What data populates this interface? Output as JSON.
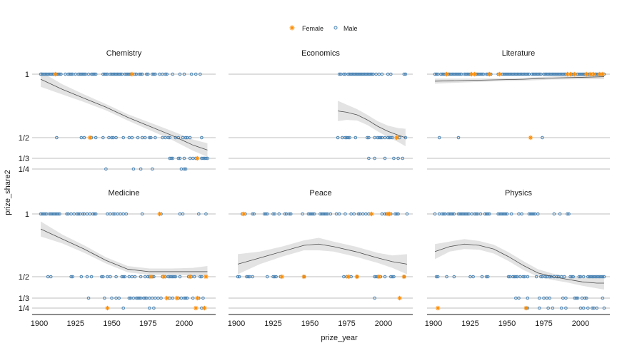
{
  "chart_data": {
    "type": "scatter",
    "title": "",
    "xlabel": "prize_year",
    "ylabel": "prize_share2",
    "xlim": [
      1897,
      2020
    ],
    "x_ticks": [
      1900,
      1925,
      1950,
      1975,
      2000
    ],
    "y_levels": [
      1,
      0.5,
      0.3333,
      0.25
    ],
    "y_tick_labels": [
      "1",
      "1/2",
      "1/3",
      "1/4"
    ],
    "legend": {
      "placement": "top",
      "entries": [
        {
          "name": "Female",
          "marker": "asterisk",
          "color": "#FF8C00"
        },
        {
          "name": "Male",
          "marker": "open-circle",
          "color": "#4682B4"
        }
      ]
    },
    "grid": "horizontal",
    "smooth": {
      "color": "#4d4d4d",
      "ribbon_color": "#e3e3e3"
    },
    "panels": [
      {
        "name": "Chemistry",
        "male": {
          "1": [
            1901,
            1902,
            1903,
            1904,
            1905,
            1906,
            1907,
            1908,
            1909,
            1910,
            1912,
            1913,
            1914,
            1915,
            1918,
            1920,
            1921,
            1922,
            1923,
            1925,
            1927,
            1928,
            1929,
            1930,
            1931,
            1932,
            1934,
            1936,
            1937,
            1938,
            1939,
            1944,
            1945,
            1946,
            1947,
            1949,
            1950,
            1951,
            1952,
            1953,
            1954,
            1955,
            1956,
            1957,
            1959,
            1960,
            1961,
            1962,
            1963,
            1966,
            1967,
            1969,
            1970,
            1971,
            1974,
            1975,
            1978,
            1979,
            1980,
            1983,
            1985,
            1987,
            1988,
            1992,
            1997,
            2000,
            2005,
            2008,
            2011
          ],
          "1/2": [
            1912,
            1929,
            1931,
            1936,
            1939,
            1944,
            1948,
            1950,
            1951,
            1953,
            1958,
            1962,
            1964,
            1968,
            1971,
            1973,
            1976,
            1977,
            1980,
            1985,
            1987,
            1989,
            1990,
            1994,
            1996,
            1999,
            2001,
            2002,
            2004,
            2012
          ],
          "1/3": [
            1990,
            1991,
            1992,
            1996,
            1997,
            2000,
            2004,
            2006,
            2008,
            2012,
            2013,
            2014,
            2015,
            2016
          ],
          "1/4": [
            1946,
            1965,
            1970,
            1978,
            1998,
            2000,
            2001
          ]
        },
        "female": {
          "1": [
            1911,
            1964
          ],
          "1/2": [
            1935
          ],
          "1/3": [
            2009
          ],
          "1/4": []
        },
        "smooth": {
          "x": [
            1901,
            1916,
            1931,
            1946,
            1961,
            1976,
            1991,
            2006,
            2016
          ],
          "y": [
            0.96,
            0.88,
            0.81,
            0.74,
            0.66,
            0.59,
            0.52,
            0.44,
            0.4
          ],
          "se": [
            0.06,
            0.04,
            0.03,
            0.025,
            0.025,
            0.03,
            0.035,
            0.045,
            0.055
          ]
        }
      },
      {
        "name": "Economics",
        "male": {
          "1": [
            1970,
            1971,
            1973,
            1974,
            1976,
            1977,
            1978,
            1979,
            1980,
            1981,
            1982,
            1983,
            1984,
            1985,
            1986,
            1987,
            1988,
            1989,
            1990,
            1991,
            1992,
            1993,
            1995,
            1997,
            1999,
            2003,
            2005,
            2014,
            2015
          ],
          "1/2": [
            1969,
            1972,
            1974,
            1975,
            1976,
            1977,
            1981,
            1989,
            1990,
            1994,
            1996,
            1997,
            1998,
            1999,
            2001,
            2003,
            2004,
            2005,
            2006,
            2011,
            2015
          ],
          "1/3": [
            1990,
            1994,
            2001,
            2007,
            2010,
            2013
          ],
          "1/4": []
        },
        "female": {
          "1": [],
          "1/2": [
            2009
          ],
          "1/3": [],
          "1/4": []
        },
        "smooth": {
          "x": [
            1969,
            1975,
            1982,
            1989,
            1996,
            2003,
            2010,
            2015
          ],
          "y": [
            0.71,
            0.7,
            0.68,
            0.64,
            0.59,
            0.55,
            0.52,
            0.5
          ],
          "se": [
            0.08,
            0.06,
            0.045,
            0.04,
            0.04,
            0.045,
            0.055,
            0.07
          ]
        }
      },
      {
        "name": "Literature",
        "male": {
          "1": [
            1901,
            1902,
            1903,
            1905,
            1906,
            1907,
            1908,
            1910,
            1911,
            1912,
            1913,
            1914,
            1915,
            1916,
            1917,
            1918,
            1919,
            1921,
            1922,
            1923,
            1924,
            1925,
            1929,
            1930,
            1931,
            1932,
            1933,
            1934,
            1936,
            1937,
            1938,
            1939,
            1944,
            1947,
            1948,
            1949,
            1950,
            1951,
            1952,
            1953,
            1954,
            1955,
            1956,
            1957,
            1958,
            1959,
            1960,
            1961,
            1962,
            1963,
            1964,
            1965,
            1967,
            1968,
            1969,
            1970,
            1971,
            1972,
            1973,
            1975,
            1976,
            1977,
            1978,
            1979,
            1980,
            1981,
            1982,
            1983,
            1984,
            1985,
            1986,
            1987,
            1988,
            1989,
            1990,
            1994,
            1995,
            1998,
            1999,
            2000,
            2001,
            2002,
            2003,
            2005,
            2006,
            2008,
            2010,
            2011,
            2012,
            2014,
            2016
          ],
          "1/2": [
            1904,
            1917,
            1974
          ],
          "1/3": [],
          "1/4": []
        },
        "female": {
          "1": [
            1909,
            1926,
            1928,
            1938,
            1945,
            1991,
            1993,
            1996,
            2004,
            2007,
            2009,
            2013,
            2015
          ],
          "1/2": [
            1966
          ],
          "1/3": [],
          "1/4": []
        },
        "smooth": {
          "x": [
            1901,
            1921,
            1941,
            1961,
            1981,
            2001,
            2016
          ],
          "y": [
            0.945,
            0.95,
            0.955,
            0.96,
            0.97,
            0.975,
            0.98
          ],
          "se": [
            0.02,
            0.015,
            0.012,
            0.012,
            0.012,
            0.015,
            0.02
          ]
        }
      },
      {
        "name": "Medicine",
        "male": {
          "1": [
            1901,
            1902,
            1903,
            1904,
            1905,
            1907,
            1908,
            1909,
            1910,
            1911,
            1912,
            1913,
            1914,
            1919,
            1920,
            1922,
            1924,
            1926,
            1927,
            1928,
            1930,
            1931,
            1933,
            1935,
            1937,
            1938,
            1939,
            1947,
            1949,
            1951,
            1952,
            1954,
            1956,
            1958,
            1960,
            1971,
            1984,
            1997,
            1999,
            2010,
            2015
          ],
          "1/2": [
            1906,
            1908,
            1922,
            1923,
            1929,
            1933,
            1936,
            1943,
            1944,
            1947,
            1949,
            1953,
            1957,
            1958,
            1959,
            1962,
            1964,
            1966,
            1970,
            1973,
            1975,
            1976,
            1978,
            1979,
            1985,
            1987,
            1989,
            1990,
            1991,
            1992,
            1993,
            1994,
            1997,
            2003,
            2005,
            2007,
            2011,
            2012
          ],
          "1/3": [
            1934,
            1945,
            1950,
            1953,
            1955,
            1962,
            1963,
            1965,
            1967,
            1968,
            1969,
            1970,
            1972,
            1973,
            1974,
            1976,
            1978,
            1980,
            1982,
            1984,
            1990,
            1992,
            1996,
            1998,
            2000,
            2001,
            2002,
            2006,
            2010,
            2013
          ],
          "1/4": [
            1958,
            1976,
            1979,
            2012
          ]
        },
        "female": {
          "1": [
            1983
          ],
          "1/2": [
            1977,
            1986,
            2004,
            2015
          ],
          "1/3": [
            1988,
            1995,
            2009
          ],
          "1/4": [
            1947,
            2008,
            2014
          ]
        },
        "smooth": {
          "x": [
            1901,
            1916,
            1931,
            1946,
            1961,
            1976,
            1991,
            2006,
            2016
          ],
          "y": [
            0.88,
            0.8,
            0.72,
            0.63,
            0.56,
            0.54,
            0.54,
            0.54,
            0.54
          ],
          "se": [
            0.06,
            0.035,
            0.03,
            0.025,
            0.025,
            0.025,
            0.025,
            0.03,
            0.045
          ]
        }
      },
      {
        "name": "Peace",
        "male": {
          "1": [
            1904,
            1906,
            1911,
            1912,
            1919,
            1920,
            1921,
            1925,
            1926,
            1929,
            1933,
            1934,
            1936,
            1937,
            1945,
            1949,
            1950,
            1951,
            1952,
            1953,
            1957,
            1958,
            1959,
            1960,
            1961,
            1962,
            1964,
            1968,
            1970,
            1974,
            1978,
            1980,
            1983,
            1984,
            1986,
            1988,
            1990,
            1999,
            2001,
            2002,
            2005,
            2008,
            2009,
            2010,
            2016
          ],
          "1/2": [
            1901,
            1902,
            1907,
            1908,
            1909,
            1911,
            1921,
            1925,
            1926,
            1927,
            1930,
            1946,
            1973,
            1975,
            1978,
            1982,
            1994,
            1995,
            1996,
            1998,
            2001,
            2005,
            2006,
            2007,
            2014
          ],
          "1/3": [
            1994
          ],
          "1/4": []
        },
        "female": {
          "1": [
            1905,
            1992,
            2003,
            2004
          ],
          "1/2": [
            1931,
            1946,
            1976,
            1982,
            1997,
            2014
          ],
          "1/3": [
            2011
          ],
          "1/4": []
        },
        "smooth": {
          "x": [
            1901,
            1916,
            1931,
            1946,
            1956,
            1966,
            1981,
            1996,
            2006,
            2016
          ],
          "y": [
            0.6,
            0.65,
            0.7,
            0.75,
            0.76,
            0.74,
            0.7,
            0.65,
            0.62,
            0.6
          ],
          "se": [
            0.08,
            0.05,
            0.04,
            0.04,
            0.05,
            0.04,
            0.04,
            0.04,
            0.05,
            0.08
          ]
        }
      },
      {
        "name": "Physics",
        "male": {
          "1": [
            1901,
            1904,
            1906,
            1907,
            1908,
            1910,
            1911,
            1912,
            1913,
            1914,
            1917,
            1918,
            1919,
            1920,
            1921,
            1922,
            1923,
            1924,
            1926,
            1928,
            1929,
            1930,
            1932,
            1935,
            1936,
            1937,
            1938,
            1944,
            1945,
            1946,
            1947,
            1948,
            1949,
            1950,
            1953,
            1958,
            1960,
            1965,
            1966,
            1967,
            1968,
            1969,
            1971,
            1982,
            1986,
            1991,
            1992
          ],
          "1/2": [
            1902,
            1903,
            1909,
            1914,
            1925,
            1927,
            1933,
            1936,
            1937,
            1951,
            1952,
            1954,
            1955,
            1956,
            1957,
            1959,
            1961,
            1962,
            1964,
            1970,
            1973,
            1974,
            1976,
            1977,
            1979,
            1980,
            1982,
            1984,
            1985,
            1987,
            1989,
            1993,
            1994,
            1995,
            1999,
            2000,
            2002,
            2005,
            2006,
            2007,
            2008,
            2009,
            2010,
            2011,
            2012,
            2013,
            2014,
            2015,
            2016
          ],
          "1/3": [
            1956,
            1958,
            1964,
            1972,
            1975,
            1977,
            1979,
            1988,
            1990,
            1996,
            1997,
            1998,
            2001,
            2003,
            2004,
            2015
          ],
          "1/4": [
            1963,
            1964,
            1972,
            1978,
            1981,
            1987,
            1990,
            2000,
            2002,
            2005,
            2008,
            2009,
            2011,
            2016
          ]
        },
        "female": {
          "1": [],
          "1/2": [],
          "1/3": [],
          "1/4": [
            1903,
            1963
          ]
        },
        "smooth": {
          "x": [
            1901,
            1911,
            1921,
            1931,
            1941,
            1951,
            1961,
            1971,
            1981,
            1991,
            2001,
            2011,
            2016
          ],
          "y": [
            0.7,
            0.74,
            0.76,
            0.75,
            0.72,
            0.66,
            0.59,
            0.53,
            0.5,
            0.48,
            0.46,
            0.45,
            0.45
          ],
          "se": [
            0.06,
            0.04,
            0.04,
            0.035,
            0.035,
            0.035,
            0.035,
            0.03,
            0.025,
            0.025,
            0.03,
            0.04,
            0.05
          ]
        }
      }
    ]
  }
}
